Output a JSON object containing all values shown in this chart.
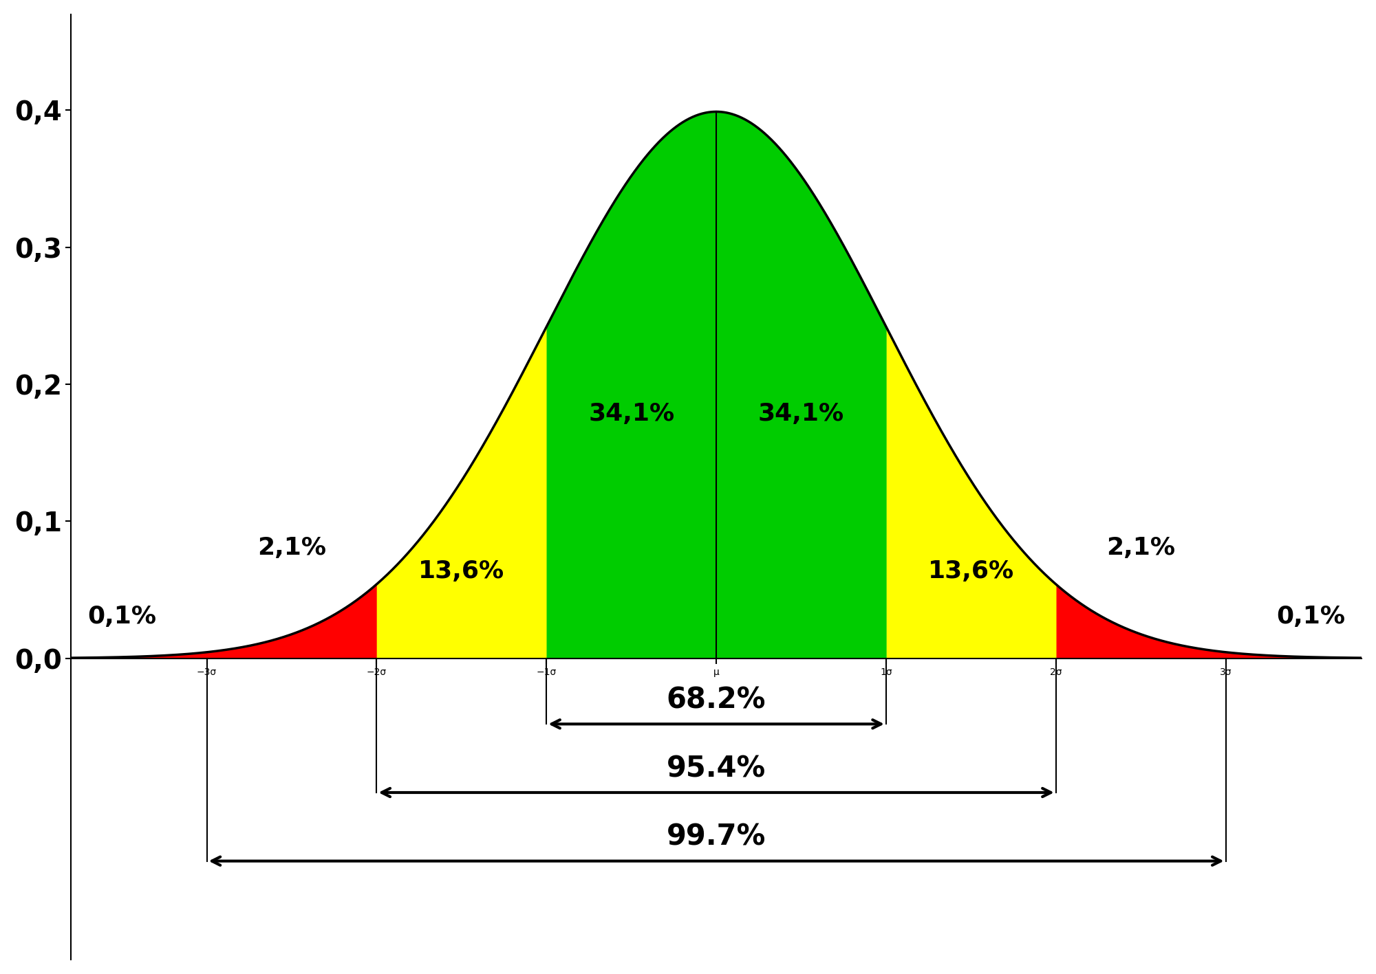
{
  "background_color": "#ffffff",
  "curve_color": "#000000",
  "curve_linewidth": 2.5,
  "fill_colors": {
    "red": "#ff0000",
    "yellow": "#ffff00",
    "green": "#00cc00"
  },
  "region_labels": {
    "left_outer": "0,1%",
    "left_red": "2,1%",
    "left_yellow": "13,6%",
    "left_green": "34,1%",
    "right_green": "34,1%",
    "right_yellow": "13,6%",
    "right_red": "2,1%",
    "right_outer": "0,1%"
  },
  "span_labels": {
    "one_sigma": "68.2%",
    "two_sigma": "95.4%",
    "three_sigma": "99.7%"
  },
  "xtick_labels": [
    "−3σ",
    "−2σ",
    "−1σ",
    "μ",
    "1σ",
    "2σ",
    "3σ"
  ],
  "xtick_positions": [
    -3,
    -2,
    -1,
    0,
    1,
    2,
    3
  ],
  "ytick_labels": [
    "0,0",
    "0,1",
    "0,2",
    "0,3",
    "0,4"
  ],
  "ytick_positions": [
    0.0,
    0.1,
    0.2,
    0.3,
    0.4
  ],
  "xlim": [
    -3.8,
    3.8
  ],
  "ylim": [
    -0.22,
    0.47
  ],
  "tick_fontsize": 28,
  "region_label_fontsize": 26,
  "span_label_fontsize": 30,
  "percentage_label_fontsize": 26
}
